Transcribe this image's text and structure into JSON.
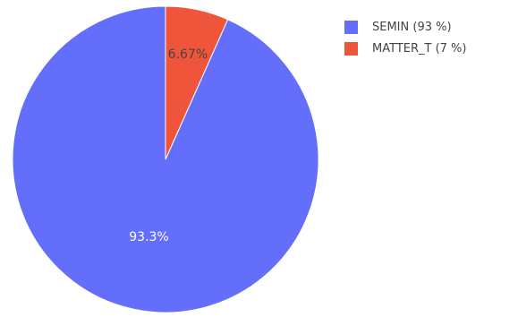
{
  "chart_data": {
    "type": "pie",
    "title": "",
    "slices": [
      {
        "name": "SEMIN (93 %)",
        "value": 93.3,
        "label": "93.3%",
        "color": "#636efa",
        "label_color": "#ffffff"
      },
      {
        "name": "MATTER_T (7 %)",
        "value": 6.67,
        "label": "6.67%",
        "color": "#ef553b",
        "label_color": "#444444"
      }
    ],
    "direction": "clockwise",
    "start_angle": "12 o'clock",
    "slice_border_color": "#ffffff",
    "legend": {
      "position": "top-right"
    }
  }
}
